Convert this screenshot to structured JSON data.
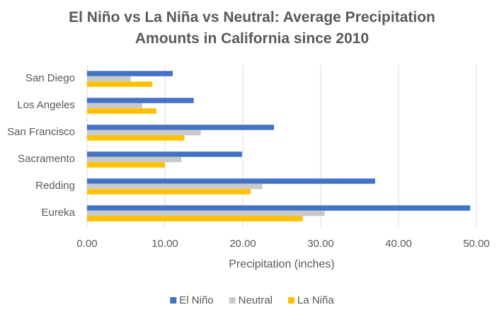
{
  "chart_data": {
    "type": "hbar",
    "title": "El Niño vs La Niña vs Neutral: Average Precipitation Amounts in California since 2010",
    "x_label": "Precipitation (inches)",
    "categories": [
      "San Diego",
      "Los Angeles",
      "San Francisco",
      "Sacramento",
      "Redding",
      "Eureka"
    ],
    "series": [
      {
        "name": "El Niño",
        "color": "#4472c4",
        "values": [
          11.0,
          13.7,
          24.0,
          19.9,
          37.0,
          49.2
        ]
      },
      {
        "name": "Neutral",
        "color": "#c9c9c9",
        "values": [
          5.6,
          7.1,
          14.6,
          12.1,
          22.5,
          30.5
        ]
      },
      {
        "name": "La Niña",
        "color": "#ffc000",
        "values": [
          8.4,
          8.9,
          12.5,
          10.0,
          21.0,
          27.7
        ]
      }
    ],
    "xlim": [
      0,
      50
    ],
    "xticks": [
      {
        "value": 0,
        "label": "0.00"
      },
      {
        "value": 10,
        "label": "10.00"
      },
      {
        "value": 20,
        "label": "20.00"
      },
      {
        "value": 30,
        "label": "30.00"
      },
      {
        "value": 40,
        "label": "40.00"
      },
      {
        "value": 50,
        "label": "50.00"
      }
    ],
    "grid": true,
    "legend": "bottom"
  }
}
